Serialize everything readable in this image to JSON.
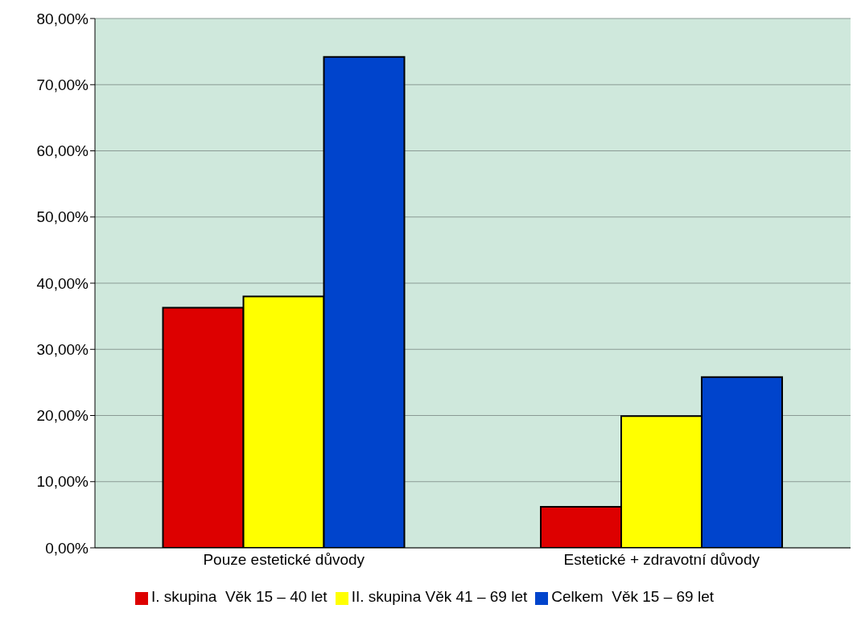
{
  "chart_data": {
    "type": "bar",
    "categories": [
      "Pouze estetické důvody",
      "Estetické + zdravotní důvody"
    ],
    "series": [
      {
        "name": "I. skupina  Věk 15 – 40 let",
        "color": "#dd0000",
        "values": [
          36.3,
          6.2
        ]
      },
      {
        "name": "II. skupina Věk 41 – 69 let",
        "color": "#ffff00",
        "values": [
          38.0,
          19.9
        ]
      },
      {
        "name": "Celkem  Věk 15 – 69 let",
        "color": "#0044cc",
        "values": [
          74.2,
          25.8
        ]
      }
    ],
    "ylim": [
      0,
      80
    ],
    "yticks": [
      {
        "value": 0,
        "label": "0,00%"
      },
      {
        "value": 10,
        "label": "10,00%"
      },
      {
        "value": 20,
        "label": "20,00%"
      },
      {
        "value": 30,
        "label": "30,00%"
      },
      {
        "value": 40,
        "label": "40,00%"
      },
      {
        "value": 50,
        "label": "50,00%"
      },
      {
        "value": 60,
        "label": "60,00%"
      },
      {
        "value": 70,
        "label": "70,00%"
      },
      {
        "value": 80,
        "label": "80,00%"
      }
    ],
    "grid": "y",
    "legend": "bottom"
  }
}
